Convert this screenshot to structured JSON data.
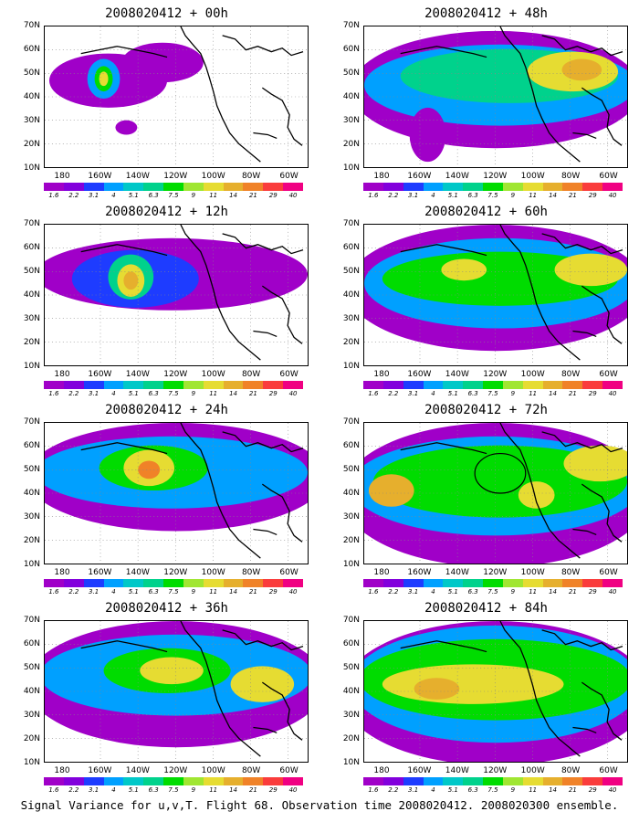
{
  "panels": [
    {
      "title": "2008020412 + 00h"
    },
    {
      "title": "2008020412 + 48h"
    },
    {
      "title": "2008020412 + 12h"
    },
    {
      "title": "2008020412 + 60h"
    },
    {
      "title": "2008020412 + 24h"
    },
    {
      "title": "2008020412 + 72h"
    },
    {
      "title": "2008020412 + 36h"
    },
    {
      "title": "2008020412 + 84h"
    }
  ],
  "lat_labels": [
    "70N",
    "60N",
    "50N",
    "40N",
    "30N",
    "20N",
    "10N"
  ],
  "lon_labels": [
    "180",
    "160W",
    "140W",
    "120W",
    "100W",
    "80W",
    "60W"
  ],
  "colorbar": {
    "labels": [
      "1.6",
      "2.2",
      "3.1",
      "4",
      "5.1",
      "6.3",
      "7.5",
      "9",
      "11",
      "14",
      "21",
      "29",
      "40"
    ],
    "colors": [
      "#a000c8",
      "#8200dc",
      "#1e3cff",
      "#00a0ff",
      "#00c8c8",
      "#00d28c",
      "#00dc00",
      "#a0e632",
      "#e6dc32",
      "#e6af2d",
      "#f08228",
      "#fa3c3c",
      "#f00082"
    ]
  },
  "caption": "Signal Variance for u,v,T. Flight 68. Observation time 2008020412. 2008020300 ensemble."
}
